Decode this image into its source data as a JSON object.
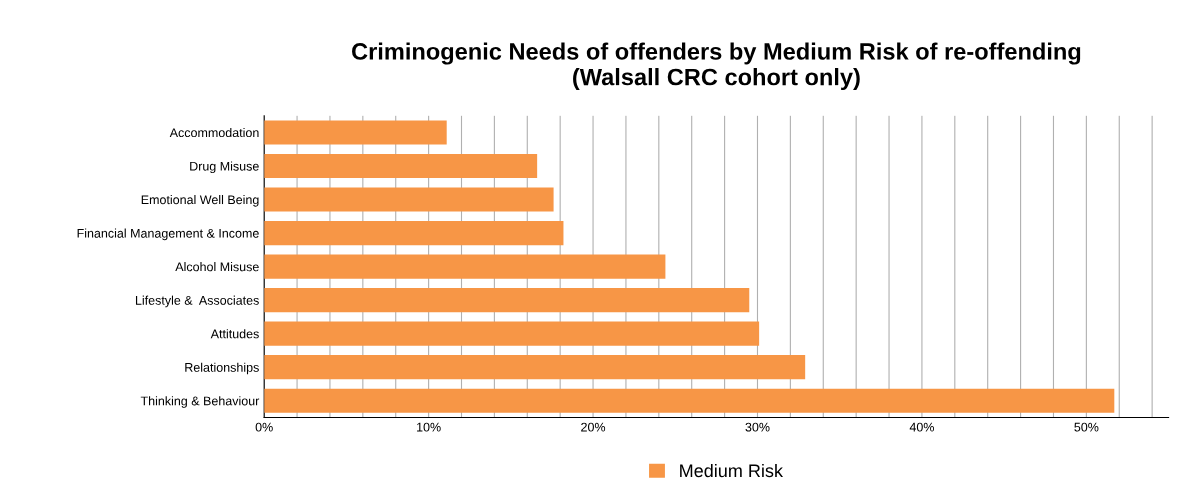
{
  "chart_data": {
    "type": "bar",
    "orientation": "horizontal",
    "title": "Criminogenic Needs of offenders by Medium Risk of re-offending\n(Walsall CRC cohort only)",
    "categories": [
      "Accommodation",
      "Drug Misuse",
      "Emotional Well Being",
      "Financial Management & Income",
      "Alcohol Misuse",
      "Lifestyle &  Associates",
      "Attitudes",
      "Relationships",
      "Thinking & Behaviour"
    ],
    "series": [
      {
        "name": "Medium Risk",
        "color": "#f79646",
        "values": [
          11.1,
          16.6,
          17.6,
          18.2,
          24.4,
          29.5,
          30.1,
          32.9,
          51.7
        ]
      }
    ],
    "xlim": [
      0,
      55
    ],
    "xticks": [
      {
        "value": 0,
        "label": "0%"
      },
      {
        "value": 2,
        "label": null
      },
      {
        "value": 4,
        "label": null
      },
      {
        "value": 6,
        "label": null
      },
      {
        "value": 8,
        "label": null
      },
      {
        "value": 10,
        "label": "10%"
      },
      {
        "value": 12,
        "label": null
      },
      {
        "value": 14,
        "label": null
      },
      {
        "value": 16,
        "label": null
      },
      {
        "value": 18,
        "label": null
      },
      {
        "value": 20,
        "label": "20%"
      },
      {
        "value": 22,
        "label": null
      },
      {
        "value": 24,
        "label": null
      },
      {
        "value": 26,
        "label": null
      },
      {
        "value": 28,
        "label": null
      },
      {
        "value": 30,
        "label": "30%"
      },
      {
        "value": 32,
        "label": null
      },
      {
        "value": 34,
        "label": null
      },
      {
        "value": 36,
        "label": null
      },
      {
        "value": 38,
        "label": null
      },
      {
        "value": 40,
        "label": "40%"
      },
      {
        "value": 42,
        "label": null
      },
      {
        "value": 44,
        "label": null
      },
      {
        "value": 46,
        "label": null
      },
      {
        "value": 48,
        "label": null
      },
      {
        "value": 50,
        "label": "50%"
      },
      {
        "value": 52,
        "label": null
      },
      {
        "value": 54,
        "label": null
      }
    ],
    "grid": "x",
    "legend": "bottom"
  }
}
